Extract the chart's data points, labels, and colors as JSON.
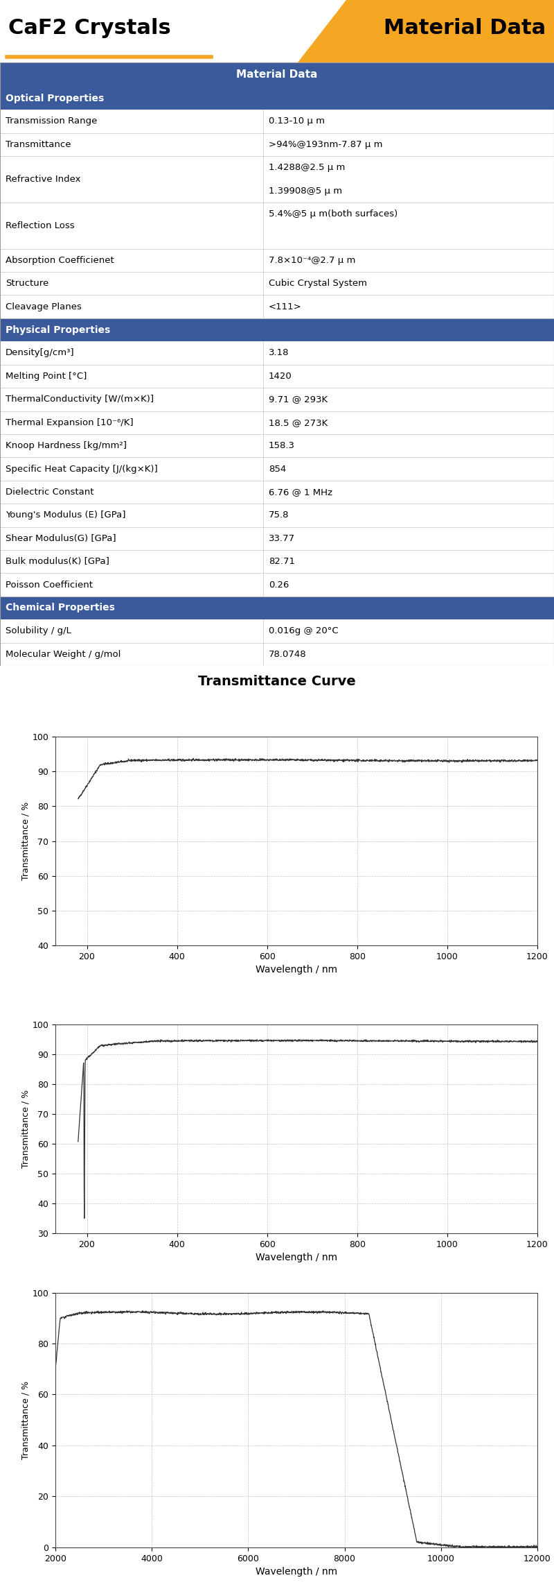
{
  "title_left": "CaF2 Crystals",
  "title_right": "Material Data",
  "header_bg": "#3A5A9B",
  "section_bg": "#3A5A9B",
  "header_text": "Material Data",
  "orange_color": "#F5A623",
  "table_data": [
    {
      "section": "Optical Properties"
    },
    {
      "property": "Transmission Range",
      "value": "0.13-10 μ m"
    },
    {
      "property": "Transmittance",
      "value": ">94%@193nm-7.87 μ m"
    },
    {
      "property": "Refractive Index",
      "value": "1.4288@2.5 μ m\n1.39908@5 μ m"
    },
    {
      "property": "Reflection Loss",
      "value": "5.4%@5 μ m(both surfaces)\n"
    },
    {
      "property": "Absorption Coefficienet",
      "value": "7.8×10⁻⁴@2.7 μ m"
    },
    {
      "property": "Structure",
      "value": "Cubic Crystal System"
    },
    {
      "property": "Cleavage Planes",
      "value": "<111>"
    },
    {
      "section": "Physical Properties"
    },
    {
      "property": "Density[g/cm³]",
      "value": "3.18"
    },
    {
      "property": "Melting Point [°C]",
      "value": "1420"
    },
    {
      "property": "ThermalConductivity [W/(m×K)]",
      "value": "9.71 @ 293K"
    },
    {
      "property": "Thermal Expansion [10⁻⁶/K]",
      "value": "18.5 @ 273K"
    },
    {
      "property": "Knoop Hardness [kg/mm²]",
      "value": "158.3"
    },
    {
      "property": "Specific Heat Capacity [J/(kg×K)]",
      "value": "854"
    },
    {
      "property": "Dielectric Constant",
      "value": "6.76 @ 1 MHz"
    },
    {
      "property": "Young's Modulus (E) [GPa]",
      "value": "75.8"
    },
    {
      "property": "Shear Modulus(G) [GPa]",
      "value": "33.77"
    },
    {
      "property": "Bulk modulus(K) [GPa]",
      "value": "82.71"
    },
    {
      "property": "Poisson Coefficient",
      "value": "0.26"
    },
    {
      "section": "Chemical Properties"
    },
    {
      "property": "Solubility / g/L",
      "value": "0.016g @ 20°C"
    },
    {
      "property": "Molecular Weight / g/mol",
      "value": "78.0748"
    }
  ],
  "graph_title": "Transmittance Curve",
  "curve1": {
    "xlabel": "Wavelength / nm",
    "ylabel": "Transmittance / %",
    "xlim": [
      130,
      1200
    ],
    "ylim": [
      40,
      100
    ],
    "xticks": [
      200,
      400,
      600,
      800,
      1000,
      1200
    ],
    "yticks": [
      40,
      50,
      60,
      70,
      80,
      90,
      100
    ]
  },
  "curve2": {
    "xlabel": "Wavelength / nm",
    "ylabel": "Transmittance / %",
    "xlim": [
      130,
      1200
    ],
    "ylim": [
      30,
      100
    ],
    "xticks": [
      200,
      400,
      600,
      800,
      1000,
      1200
    ],
    "yticks": [
      30,
      40,
      50,
      60,
      70,
      80,
      90,
      100
    ]
  },
  "curve3": {
    "xlabel": "Wavelength / nm",
    "ylabel": "Transmittance / %",
    "xlim": [
      2000,
      12000
    ],
    "ylim": [
      0,
      100
    ],
    "xticks": [
      2000,
      4000,
      6000,
      8000,
      10000,
      12000
    ],
    "yticks": [
      0,
      20,
      40,
      60,
      80,
      100
    ]
  }
}
